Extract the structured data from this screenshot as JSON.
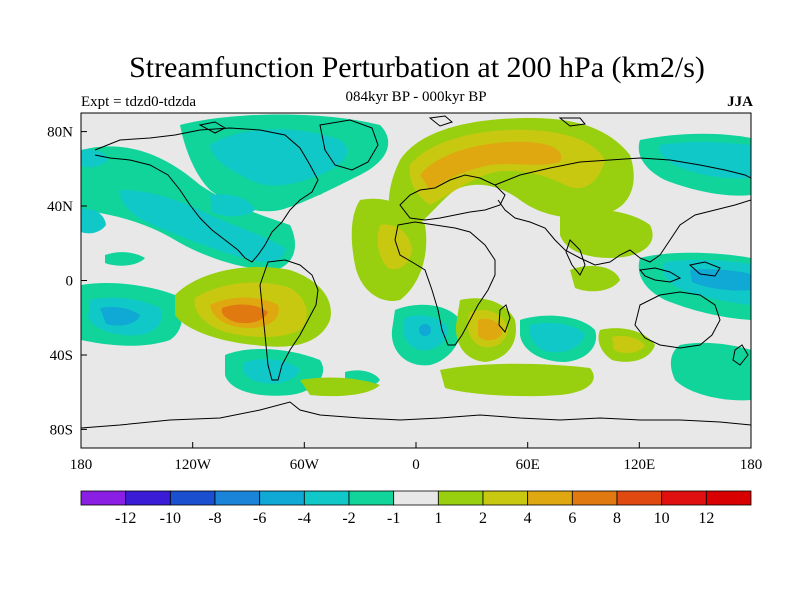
{
  "header": {
    "title": "Streamfunction Perturbation at 200 hPa (km2/s)",
    "subtitle": "084kyr BP - 000kyr BP",
    "left_string": "Expt = tdzd0-tdzda",
    "right_string": "JJA"
  },
  "map": {
    "projection": "cylindrical-equidistant",
    "lon_range": [
      -180,
      180
    ],
    "lat_range": [
      -90,
      90
    ],
    "lon_ticks": [
      "180",
      "120W",
      "60W",
      "0",
      "60E",
      "120E",
      "180"
    ],
    "lat_ticks": [
      "80N",
      "40N",
      "0",
      "40S",
      "80S"
    ],
    "background_color": "#e8e8e8",
    "coastline_color": "#000000"
  },
  "colorbar": {
    "labels": [
      "-12",
      "-10",
      "-8",
      "-6",
      "-4",
      "-2",
      "-1",
      "1",
      "2",
      "4",
      "6",
      "8",
      "10",
      "12"
    ],
    "colors": [
      "#8a1ee2",
      "#3a1cd6",
      "#1a4fd0",
      "#1a85d8",
      "#10a8d4",
      "#10c8c8",
      "#10d49a",
      "#e8e8e8",
      "#98d010",
      "#c8c810",
      "#e0a810",
      "#e07a10",
      "#e04a10",
      "#e01010",
      "#d80000"
    ]
  }
}
